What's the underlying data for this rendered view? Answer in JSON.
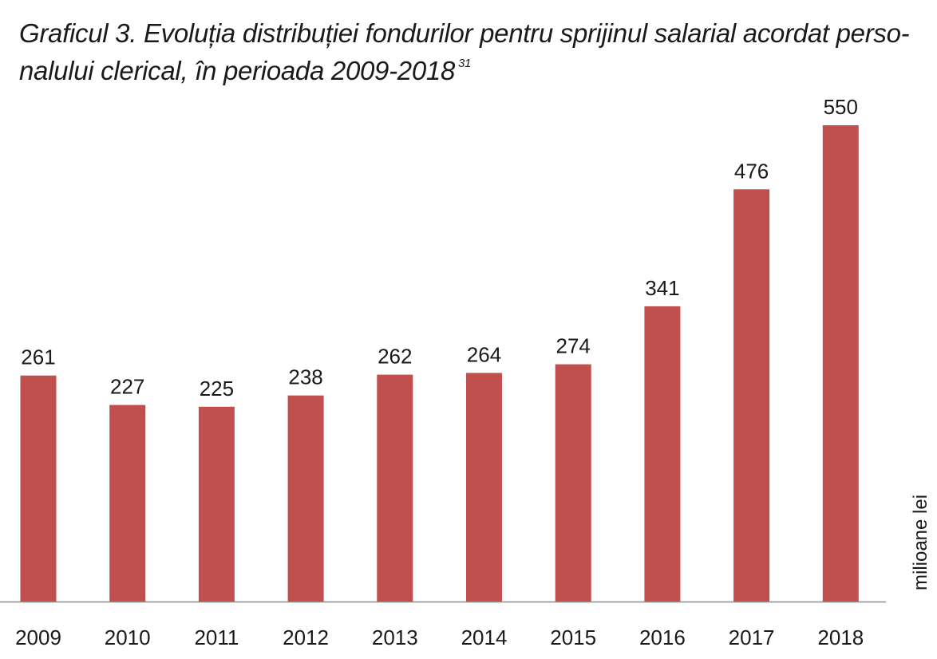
{
  "chart_data": {
    "type": "bar",
    "title": "Graficul 3. Evoluția distribuției fondurilor pentru sprijinul salarial acordat perso-nalului clerical, în perioada 2009-2018",
    "title_footnote": "31",
    "categories": [
      "2009",
      "2010",
      "2011",
      "2012",
      "2013",
      "2014",
      "2015",
      "2016",
      "2017",
      "2018"
    ],
    "values": [
      261,
      227,
      225,
      238,
      262,
      264,
      274,
      341,
      476,
      550
    ],
    "unit_label": "milioane lei",
    "xlabel": "",
    "ylabel": "",
    "ylim": [
      0,
      550
    ],
    "grid": false,
    "legend": "none",
    "bar_color": "#C0504D",
    "text_color": "#1A1A1A",
    "axis_color": "#8C8C8C"
  }
}
